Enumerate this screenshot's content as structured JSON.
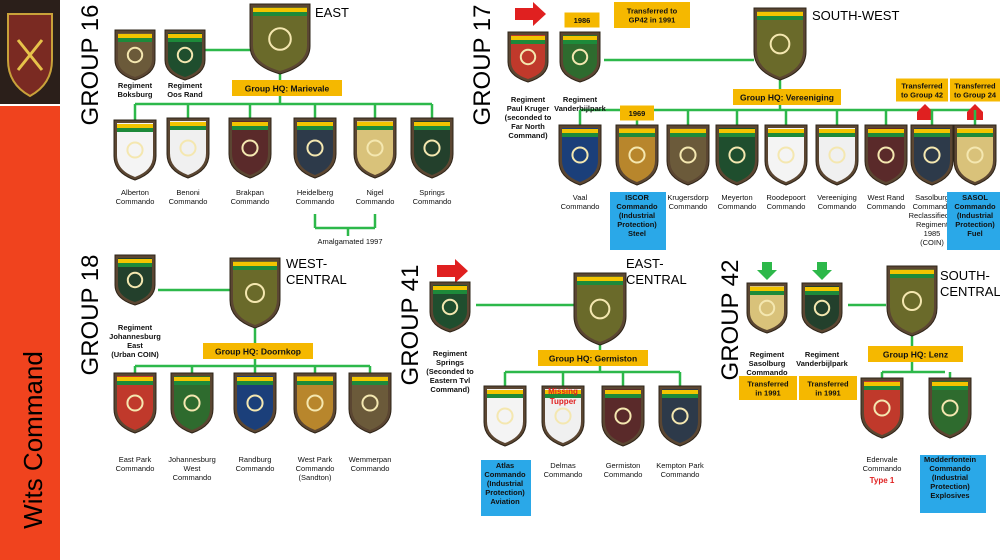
{
  "command": "Wits Command",
  "groups": [
    {
      "name": "GROUP 16",
      "region": [
        "EAST"
      ],
      "hq": "Group HQ: Marievale",
      "regiments": [
        [
          "Regiment",
          "Boksburg"
        ],
        [
          "Regiment",
          "Oos Rand"
        ]
      ],
      "commandos": [
        [
          "Alberton",
          "Commando"
        ],
        [
          "Benoni",
          "Commando"
        ],
        [
          "Brakpan",
          "Commando"
        ],
        [
          "Heidelberg",
          "Commando"
        ],
        [
          "Nigel",
          "Commando"
        ],
        [
          "Springs",
          "Commando"
        ]
      ],
      "notes": [
        [
          "Amalgamated 1997"
        ]
      ]
    },
    {
      "name": "GROUP 17",
      "region": [
        "SOUTH-WEST"
      ],
      "hq": "Group HQ: Vereeniging",
      "regiments": [
        [
          "Regiment",
          "Paul Kruger",
          "(seconded to",
          "Far North",
          "Command)"
        ],
        [
          "Regiment",
          "Vanderbijlpark"
        ]
      ],
      "commandos": [
        [
          "Vaal",
          "Commando"
        ],
        [
          "ISCOR",
          "Commando",
          "(Industrial",
          "Protection)",
          "Steel"
        ],
        [
          "Krugersdorp",
          "Commando"
        ],
        [
          "Meyerton",
          "Commando"
        ],
        [
          "Roodepoort",
          "Commando"
        ],
        [
          "Vereeniging",
          "Commando"
        ],
        [
          "West Rand",
          "Commando"
        ],
        [
          "Sasolburg",
          "Commando",
          "Reclassified a",
          "Regiment",
          "1985",
          "(COIN)"
        ],
        [
          "SASOL",
          "Commando",
          "(Industrial",
          "Protection)",
          "Fuel"
        ]
      ],
      "notes": [
        [
          "1986"
        ],
        [
          "Transferred to",
          "GP42 in 1991"
        ],
        [
          "1969"
        ],
        [
          "Transferred",
          "to Group 42"
        ],
        [
          "Transferred",
          "to Group 24"
        ]
      ]
    },
    {
      "name": "GROUP 18",
      "region": [
        "WEST-",
        "CENTRAL"
      ],
      "hq": "Group HQ: Doornkop",
      "regiments": [
        [
          "Regiment",
          "Johannesburg",
          "East",
          "(Urban COIN)"
        ]
      ],
      "commandos": [
        [
          "East Park",
          "Commando"
        ],
        [
          "Johannesburg",
          "West",
          "Commando"
        ],
        [
          "Randburg",
          "Commando"
        ],
        [
          "West Park",
          "Commando",
          "(Sandton)"
        ],
        [
          "Wemmerpan",
          "Commando"
        ]
      ],
      "notes": []
    },
    {
      "name": "GROUP 41",
      "region": [
        "EAST-",
        "CENTRAL"
      ],
      "hq": "Group HQ: Germiston",
      "regiments": [
        [
          "Regiment",
          "Springs",
          "(Seconded to",
          "Eastern Tvl",
          "Command)"
        ]
      ],
      "commandos": [
        [
          "Atlas",
          "Commando",
          "(Industrial",
          "Protection)",
          "Aviation"
        ],
        [
          "Delmas",
          "Commando"
        ],
        [
          "Germiston",
          "Commando"
        ],
        [
          "Kempton Park",
          "Commando"
        ]
      ],
      "notes": [
        [
          "Missing",
          "Tupper"
        ]
      ]
    },
    {
      "name": "GROUP 42",
      "region": [
        "SOUTH-",
        "CENTRAL"
      ],
      "hq": "Group HQ: Lenz",
      "regiments": [
        [
          "Regiment",
          "Sasolburg",
          "Commando"
        ],
        [
          "Regiment",
          "Vanderbijlpark"
        ]
      ],
      "commandos": [
        [
          "Edenvale",
          "Commando"
        ],
        [
          "Modderfontein",
          "Commando",
          "(Industrial",
          "Protection)",
          "Explosives"
        ]
      ],
      "notes": [
        [
          "Transferred",
          "in 1991"
        ],
        [
          "Transferred",
          "in 1991"
        ],
        [
          "Type 1"
        ]
      ]
    }
  ]
}
